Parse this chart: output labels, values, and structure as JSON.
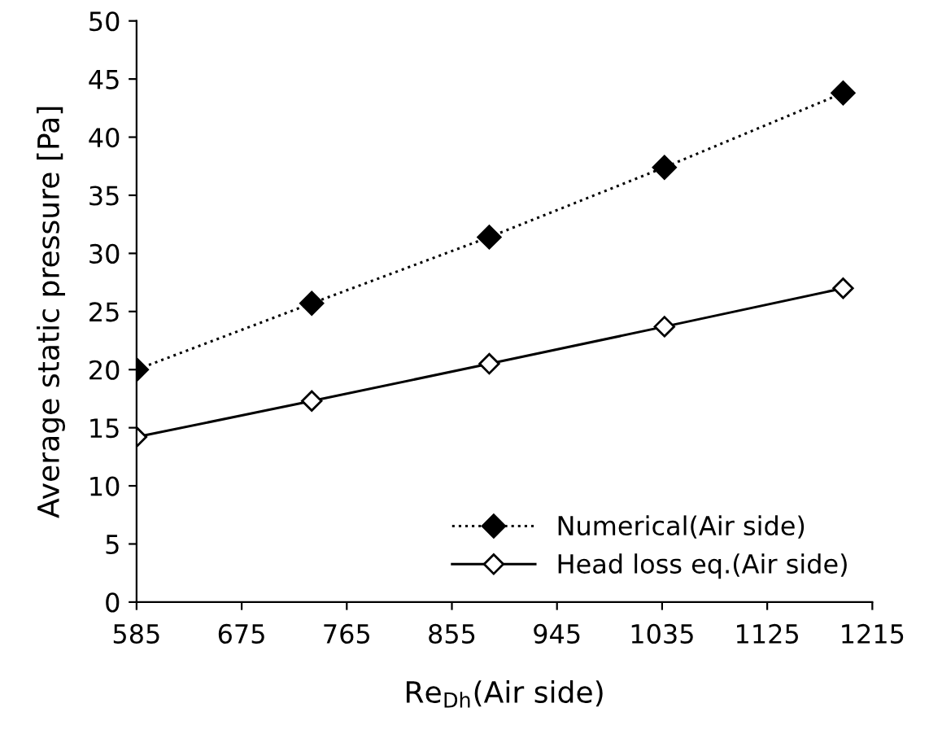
{
  "chart_data": {
    "type": "line",
    "xlabel": "Re$_{Dh}$(Air side)",
    "ylabel": "Average static pressure [Pa]",
    "x": [
      585,
      735,
      887,
      1037,
      1190
    ],
    "series": [
      {
        "name": "Numerical(Air side)",
        "color": "#000000",
        "values": [
          20.0,
          25.7,
          31.4,
          37.4,
          43.8
        ],
        "line_style": "dotted",
        "marker": "diamond"
      },
      {
        "name": "Head loss eq.(Air side)",
        "color": "#000000",
        "values": [
          14.2,
          17.3,
          20.5,
          23.7,
          27.0
        ],
        "line_style": "solid",
        "marker": "diamond"
      }
    ],
    "xlim": [
      585,
      1215
    ],
    "xticks": [
      585,
      675,
      765,
      855,
      945,
      1035,
      1125,
      1215
    ],
    "ylim": [
      0,
      50
    ],
    "yticks": [
      0,
      5,
      10,
      15,
      20,
      25,
      30,
      35,
      40,
      45,
      50
    ],
    "grid": false,
    "legend": "bottom right"
  }
}
